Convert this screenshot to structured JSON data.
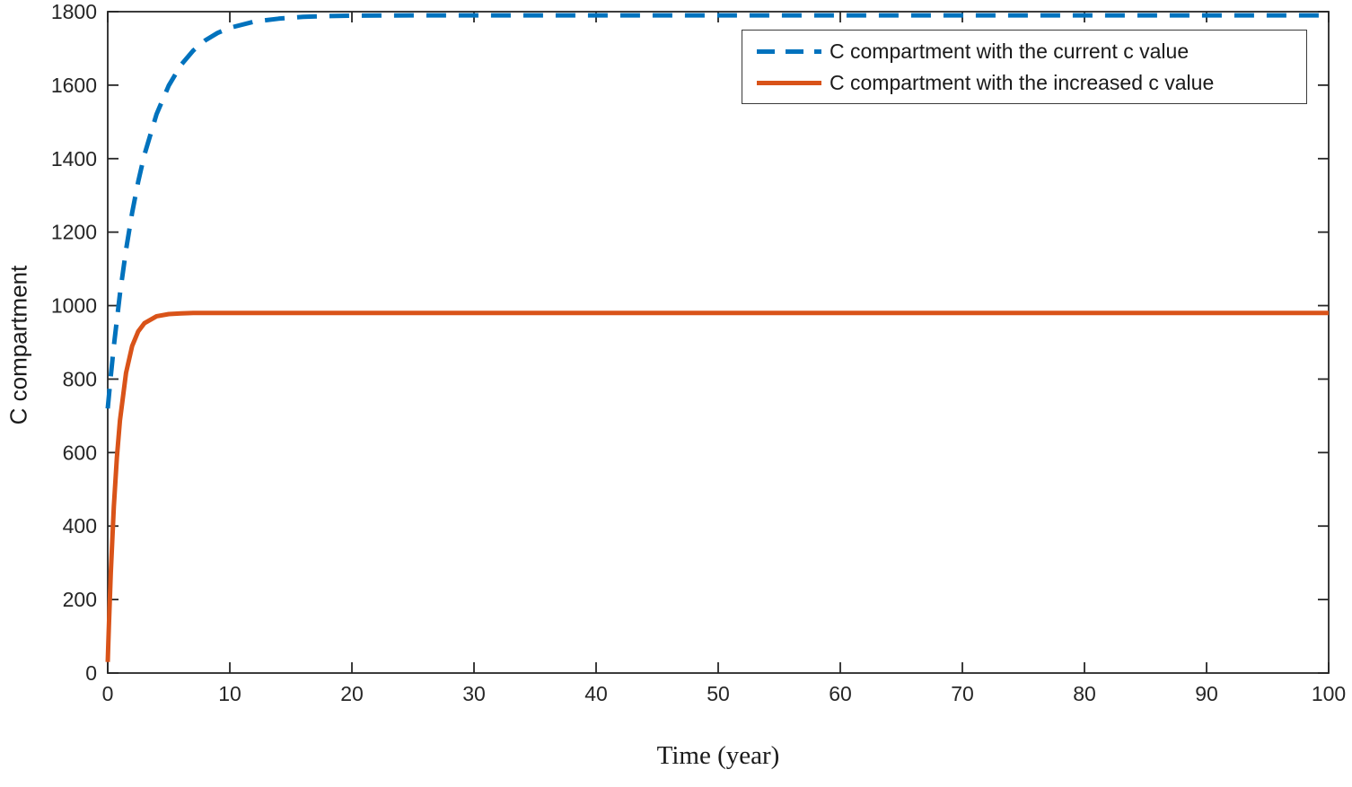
{
  "chart_data": {
    "type": "line",
    "title": "",
    "xlabel": "Time (year)",
    "ylabel": "C compartment",
    "xlim": [
      0,
      100
    ],
    "ylim": [
      0,
      1800
    ],
    "xticks": [
      0,
      10,
      20,
      30,
      40,
      50,
      60,
      70,
      80,
      90,
      100
    ],
    "yticks": [
      0,
      200,
      400,
      600,
      800,
      1000,
      1200,
      1400,
      1600,
      1800
    ],
    "grid": false,
    "legend_position": "top-right",
    "axis_color": "#262626",
    "background_color": "#ffffff",
    "series": [
      {
        "name": "C compartment with the current c value",
        "color": "#0072BD",
        "style": "dashed",
        "line_width": 5,
        "x": [
          0,
          0.25,
          0.5,
          1,
          1.5,
          2,
          2.5,
          3,
          4,
          5,
          6,
          7,
          8,
          9,
          10,
          12,
          14,
          16,
          18,
          20,
          25,
          30,
          40,
          50,
          60,
          70,
          80,
          90,
          100
        ],
        "y": [
          720,
          808,
          890,
          1032,
          1152,
          1253,
          1338,
          1410,
          1521,
          1599,
          1655,
          1694,
          1722,
          1742,
          1756,
          1773,
          1781,
          1786,
          1788,
          1789,
          1790,
          1790,
          1790,
          1790,
          1790,
          1790,
          1790,
          1790,
          1790
        ]
      },
      {
        "name": "C compartment with the increased c value",
        "color": "#D95319",
        "style": "solid",
        "line_width": 5,
        "x": [
          0,
          0.05,
          0.1,
          0.25,
          0.5,
          0.75,
          1,
          1.5,
          2,
          2.5,
          3,
          4,
          5,
          6,
          7,
          8,
          10,
          15,
          20,
          30,
          40,
          50,
          60,
          70,
          80,
          90,
          100
        ],
        "y": [
          30,
          84,
          136,
          272,
          453,
          587,
          687,
          817,
          890,
          930,
          952,
          971,
          977,
          979,
          980,
          980,
          980,
          980,
          980,
          980,
          980,
          980,
          980,
          980,
          980,
          980,
          980
        ]
      }
    ]
  }
}
